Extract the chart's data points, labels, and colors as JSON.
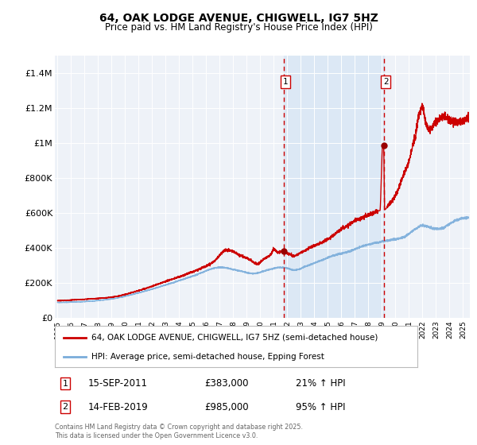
{
  "title": "64, OAK LODGE AVENUE, CHIGWELL, IG7 5HZ",
  "subtitle": "Price paid vs. HM Land Registry's House Price Index (HPI)",
  "title_fontsize": 10,
  "subtitle_fontsize": 8.5,
  "background_color": "#ffffff",
  "plot_bg_color": "#eef2f8",
  "grid_color": "#ffffff",
  "ylim": [
    0,
    1500000
  ],
  "yticks": [
    0,
    200000,
    400000,
    600000,
    800000,
    1000000,
    1200000,
    1400000
  ],
  "ytick_labels": [
    "£0",
    "£200K",
    "£400K",
    "£600K",
    "£800K",
    "£1M",
    "£1.2M",
    "£1.4M"
  ],
  "xlim_start": 1994.8,
  "xlim_end": 2025.5,
  "xtick_years": [
    1995,
    1996,
    1997,
    1998,
    1999,
    2000,
    2001,
    2002,
    2003,
    2004,
    2005,
    2006,
    2007,
    2008,
    2009,
    2010,
    2011,
    2012,
    2013,
    2014,
    2015,
    2016,
    2017,
    2018,
    2019,
    2020,
    2021,
    2022,
    2023,
    2024,
    2025
  ],
  "red_line_color": "#cc0000",
  "blue_line_color": "#7aacda",
  "highlight_bg_color": "#dce8f5",
  "dashed_line_color": "#cc0000",
  "marker_color": "#990000",
  "sale1_x": 2011.71,
  "sale1_y": 383000,
  "sale1_label": "1",
  "sale2_x": 2019.12,
  "sale2_y": 985000,
  "sale2_label": "2",
  "legend_line1": "64, OAK LODGE AVENUE, CHIGWELL, IG7 5HZ (semi-detached house)",
  "legend_line2": "HPI: Average price, semi-detached house, Epping Forest",
  "annotation1_num": "1",
  "annotation1_date": "15-SEP-2011",
  "annotation1_price": "£383,000",
  "annotation1_hpi": "21% ↑ HPI",
  "annotation2_num": "2",
  "annotation2_date": "14-FEB-2019",
  "annotation2_price": "£985,000",
  "annotation2_hpi": "95% ↑ HPI",
  "footer": "Contains HM Land Registry data © Crown copyright and database right 2025.\nThis data is licensed under the Open Government Licence v3.0."
}
